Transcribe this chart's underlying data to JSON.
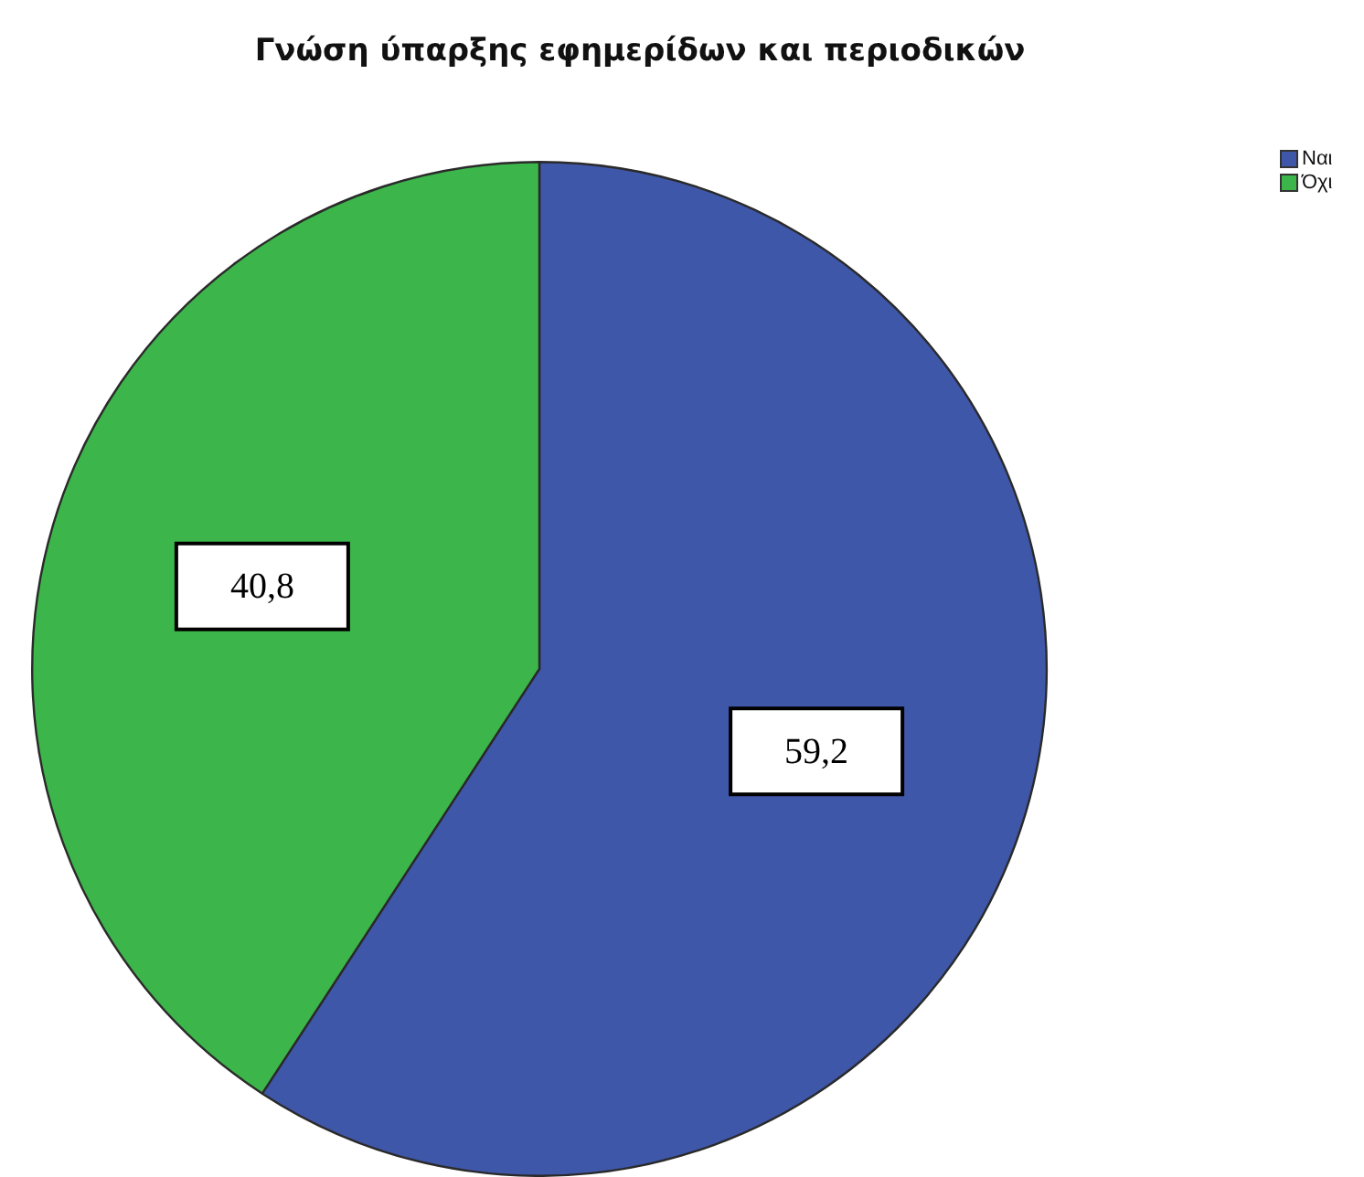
{
  "chart_data": {
    "type": "pie",
    "title": "Γνώση ύπαρξης εφημερίδων και περιοδικών",
    "categories": [
      "Ναι",
      "Όχι"
    ],
    "values": [
      59.2,
      40.8
    ],
    "colors": [
      "#3f57a9",
      "#3cb54a"
    ],
    "value_labels": [
      "59,2",
      "40,8"
    ],
    "legend": "top right"
  }
}
